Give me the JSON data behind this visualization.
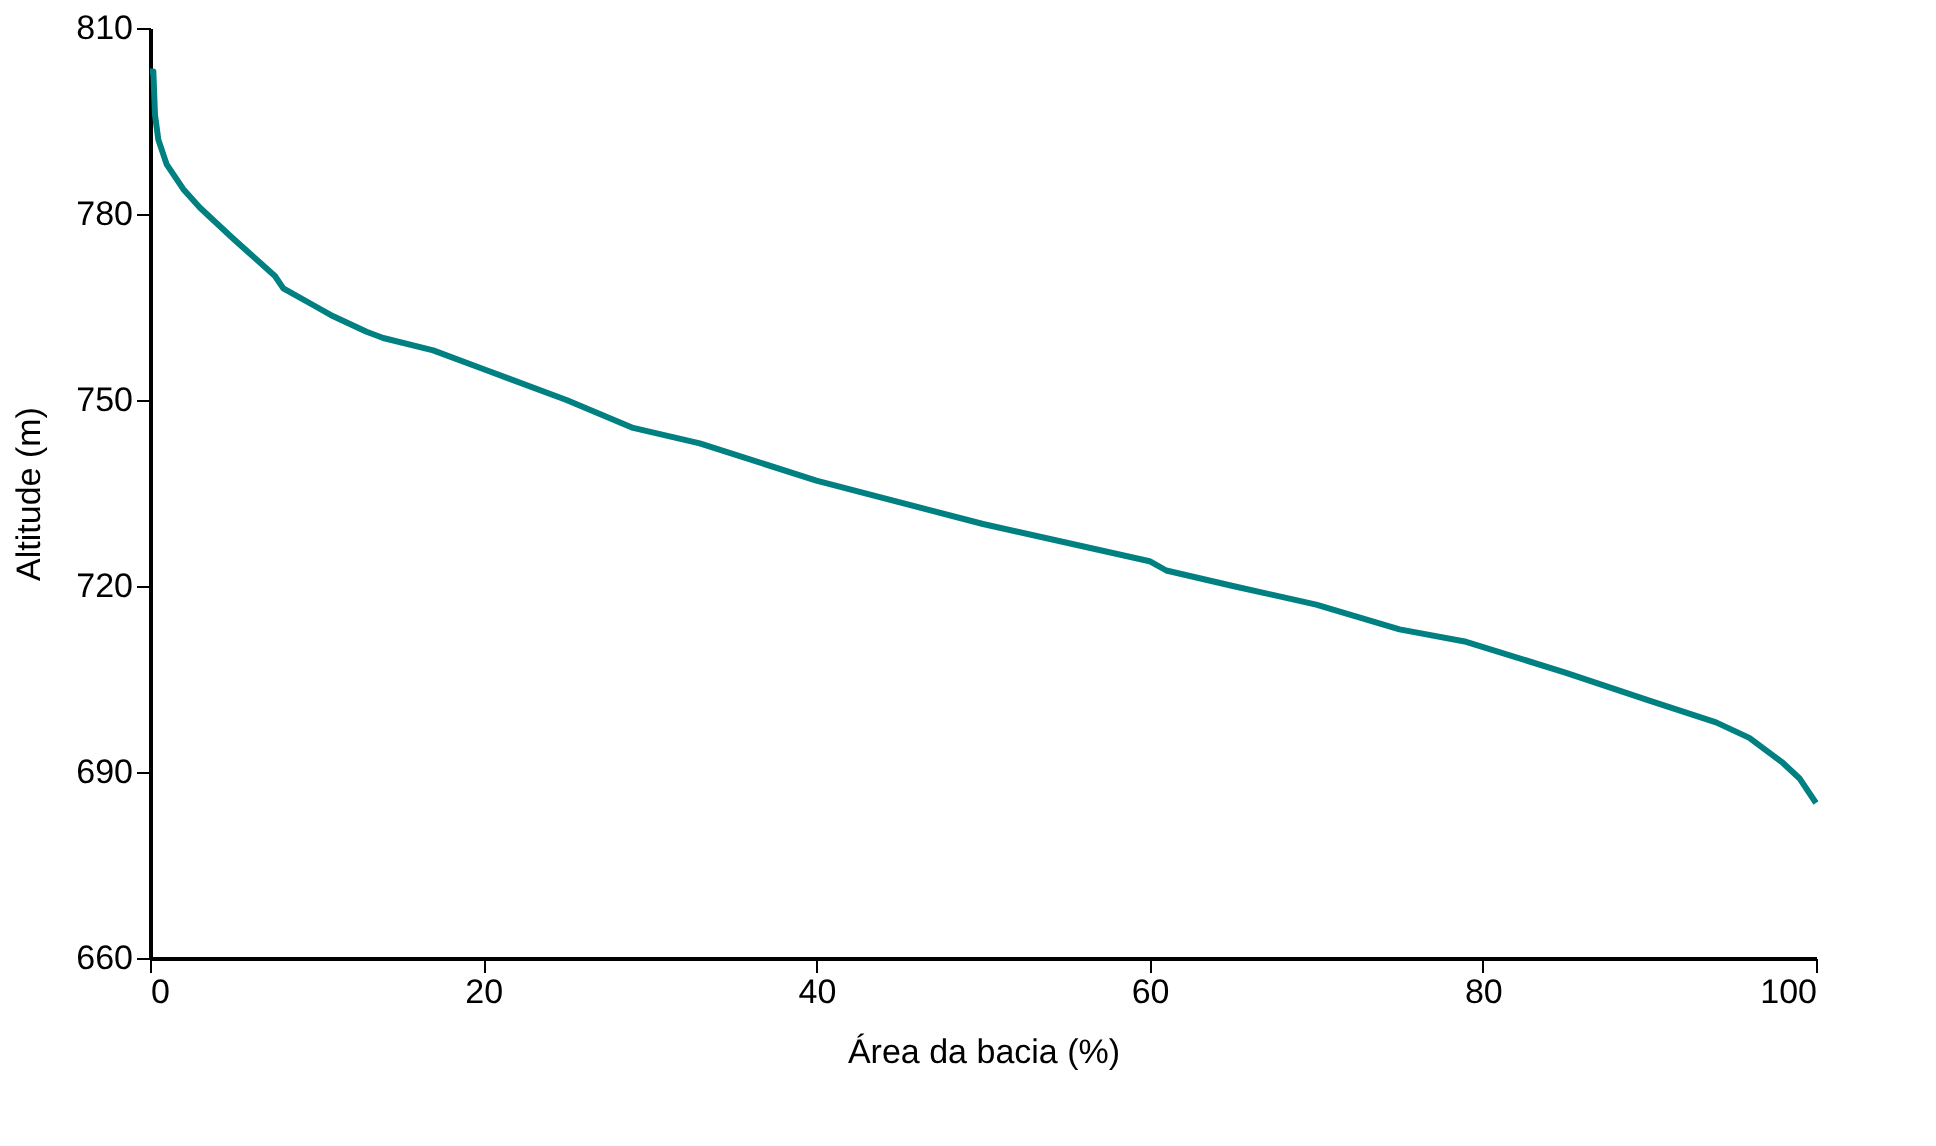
{
  "chart_data": {
    "type": "line",
    "xlabel": "Área da bacia (%)",
    "ylabel": "Altitude (m)",
    "x": [
      0,
      0.2,
      0.3,
      0.5,
      1,
      2,
      3,
      5,
      7.5,
      8,
      10,
      11,
      13,
      14,
      17,
      20,
      25,
      29,
      33,
      40,
      50,
      60,
      61,
      65,
      70,
      75,
      79,
      85,
      90,
      94,
      96,
      98,
      99,
      100
    ],
    "series": [
      {
        "color": "#008080",
        "values": [
          803,
          803,
          796,
          792,
          788,
          784,
          781,
          776,
          770,
          768,
          765,
          763.5,
          761,
          760,
          758,
          755,
          750,
          745.5,
          743,
          737,
          730,
          724,
          722.5,
          720,
          717,
          713,
          711,
          706,
          701.5,
          698,
          695.5,
          691.5,
          689,
          685
        ]
      }
    ],
    "xlim": [
      0,
      100
    ],
    "xticks": [
      0,
      20,
      40,
      60,
      80,
      100
    ],
    "ylim": [
      660,
      810
    ],
    "yticks": [
      660,
      690,
      720,
      750,
      780,
      810
    ],
    "grid": false,
    "marker": "none",
    "line_style": "solid"
  }
}
